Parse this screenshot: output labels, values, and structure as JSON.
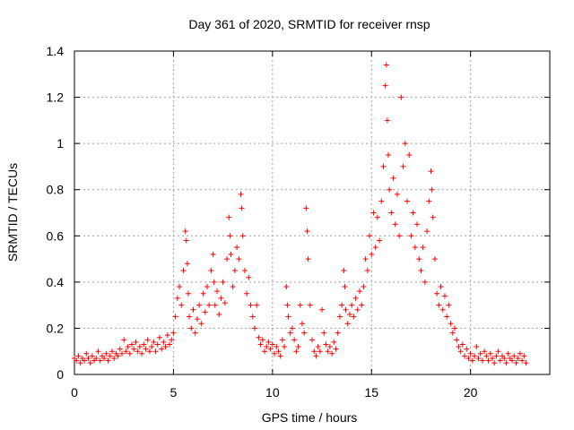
{
  "chart_data": {
    "type": "scatter",
    "title": "Day 361 of 2020, SRMTID for receiver rnsp",
    "xlabel": "GPS time / hours",
    "ylabel": "SRMTID / TECUs",
    "xlim": [
      0,
      24
    ],
    "ylim": [
      0,
      1.4
    ],
    "xticks": [
      0,
      5,
      10,
      15,
      20
    ],
    "xtick_labels": [
      "0",
      "5",
      "10",
      "15",
      "20"
    ],
    "yticks": [
      0,
      0.2,
      0.4,
      0.6,
      0.8,
      1.0,
      1.2,
      1.4
    ],
    "ytick_labels": [
      "0",
      "0.2",
      "0.4",
      "0.6",
      "0.8",
      "1",
      "1.2",
      "1.4"
    ],
    "grid": true,
    "marker": "plus",
    "marker_color": "#ff0000",
    "series": [
      {
        "name": "SRMTID",
        "points": [
          [
            0.0,
            0.07
          ],
          [
            0.1,
            0.06
          ],
          [
            0.2,
            0.08
          ],
          [
            0.3,
            0.05
          ],
          [
            0.4,
            0.07
          ],
          [
            0.5,
            0.06
          ],
          [
            0.6,
            0.09
          ],
          [
            0.7,
            0.07
          ],
          [
            0.8,
            0.05
          ],
          [
            0.9,
            0.08
          ],
          [
            1.0,
            0.06
          ],
          [
            1.1,
            0.07
          ],
          [
            1.2,
            0.1
          ],
          [
            1.3,
            0.06
          ],
          [
            1.4,
            0.08
          ],
          [
            1.5,
            0.07
          ],
          [
            1.6,
            0.09
          ],
          [
            1.7,
            0.06
          ],
          [
            1.8,
            0.08
          ],
          [
            1.9,
            0.1
          ],
          [
            2.0,
            0.07
          ],
          [
            2.1,
            0.09
          ],
          [
            2.2,
            0.08
          ],
          [
            2.3,
            0.11
          ],
          [
            2.4,
            0.09
          ],
          [
            2.5,
            0.15
          ],
          [
            2.6,
            0.1
          ],
          [
            2.7,
            0.12
          ],
          [
            2.8,
            0.09
          ],
          [
            2.9,
            0.13
          ],
          [
            3.0,
            0.11
          ],
          [
            3.1,
            0.14
          ],
          [
            3.2,
            0.1
          ],
          [
            3.3,
            0.12
          ],
          [
            3.4,
            0.09
          ],
          [
            3.5,
            0.13
          ],
          [
            3.6,
            0.11
          ],
          [
            3.7,
            0.15
          ],
          [
            3.8,
            0.1
          ],
          [
            3.9,
            0.12
          ],
          [
            4.0,
            0.14
          ],
          [
            4.1,
            0.1
          ],
          [
            4.2,
            0.13
          ],
          [
            4.3,
            0.16
          ],
          [
            4.4,
            0.11
          ],
          [
            4.5,
            0.14
          ],
          [
            4.6,
            0.12
          ],
          [
            4.7,
            0.17
          ],
          [
            4.8,
            0.13
          ],
          [
            4.9,
            0.15
          ],
          [
            5.0,
            0.18
          ],
          [
            5.1,
            0.25
          ],
          [
            5.2,
            0.33
          ],
          [
            5.3,
            0.38
          ],
          [
            5.4,
            0.3
          ],
          [
            5.5,
            0.45
          ],
          [
            5.6,
            0.62
          ],
          [
            5.65,
            0.58
          ],
          [
            5.7,
            0.48
          ],
          [
            5.75,
            0.35
          ],
          [
            5.8,
            0.25
          ],
          [
            5.9,
            0.2
          ],
          [
            6.0,
            0.28
          ],
          [
            6.1,
            0.18
          ],
          [
            6.2,
            0.24
          ],
          [
            6.3,
            0.3
          ],
          [
            6.4,
            0.22
          ],
          [
            6.5,
            0.35
          ],
          [
            6.6,
            0.27
          ],
          [
            6.7,
            0.38
          ],
          [
            6.8,
            0.3
          ],
          [
            6.9,
            0.45
          ],
          [
            7.0,
            0.52
          ],
          [
            7.05,
            0.4
          ],
          [
            7.1,
            0.3
          ],
          [
            7.2,
            0.36
          ],
          [
            7.3,
            0.26
          ],
          [
            7.4,
            0.33
          ],
          [
            7.5,
            0.4
          ],
          [
            7.6,
            0.31
          ],
          [
            7.7,
            0.5
          ],
          [
            7.8,
            0.68
          ],
          [
            7.85,
            0.6
          ],
          [
            7.9,
            0.52
          ],
          [
            8.0,
            0.38
          ],
          [
            8.1,
            0.45
          ],
          [
            8.2,
            0.55
          ],
          [
            8.3,
            0.5
          ],
          [
            8.4,
            0.78
          ],
          [
            8.45,
            0.72
          ],
          [
            8.5,
            0.6
          ],
          [
            8.6,
            0.45
          ],
          [
            8.7,
            0.35
          ],
          [
            8.8,
            0.42
          ],
          [
            8.9,
            0.3
          ],
          [
            9.0,
            0.25
          ],
          [
            9.1,
            0.2
          ],
          [
            9.2,
            0.3
          ],
          [
            9.3,
            0.16
          ],
          [
            9.4,
            0.13
          ],
          [
            9.5,
            0.15
          ],
          [
            9.6,
            0.1
          ],
          [
            9.7,
            0.12
          ],
          [
            9.8,
            0.14
          ],
          [
            9.9,
            0.11
          ],
          [
            10.0,
            0.13
          ],
          [
            10.1,
            0.09
          ],
          [
            10.2,
            0.12
          ],
          [
            10.3,
            0.1
          ],
          [
            10.4,
            0.08
          ],
          [
            10.5,
            0.15
          ],
          [
            10.6,
            0.12
          ],
          [
            10.7,
            0.38
          ],
          [
            10.75,
            0.3
          ],
          [
            10.8,
            0.25
          ],
          [
            10.9,
            0.18
          ],
          [
            11.0,
            0.2
          ],
          [
            11.1,
            0.15
          ],
          [
            11.2,
            0.1
          ],
          [
            11.3,
            0.12
          ],
          [
            11.4,
            0.3
          ],
          [
            11.5,
            0.22
          ],
          [
            11.6,
            0.18
          ],
          [
            11.7,
            0.72
          ],
          [
            11.75,
            0.62
          ],
          [
            11.8,
            0.5
          ],
          [
            11.9,
            0.3
          ],
          [
            12.0,
            0.15
          ],
          [
            12.1,
            0.1
          ],
          [
            12.2,
            0.08
          ],
          [
            12.3,
            0.12
          ],
          [
            12.4,
            0.1
          ],
          [
            12.5,
            0.28
          ],
          [
            12.6,
            0.18
          ],
          [
            12.7,
            0.13
          ],
          [
            12.8,
            0.1
          ],
          [
            12.9,
            0.12
          ],
          [
            13.0,
            0.09
          ],
          [
            13.1,
            0.14
          ],
          [
            13.2,
            0.11
          ],
          [
            13.3,
            0.18
          ],
          [
            13.4,
            0.25
          ],
          [
            13.5,
            0.3
          ],
          [
            13.6,
            0.45
          ],
          [
            13.65,
            0.38
          ],
          [
            13.7,
            0.28
          ],
          [
            13.8,
            0.22
          ],
          [
            13.9,
            0.26
          ],
          [
            14.0,
            0.3
          ],
          [
            14.1,
            0.25
          ],
          [
            14.2,
            0.33
          ],
          [
            14.3,
            0.28
          ],
          [
            14.4,
            0.36
          ],
          [
            14.5,
            0.3
          ],
          [
            14.6,
            0.38
          ],
          [
            14.7,
            0.5
          ],
          [
            14.8,
            0.45
          ],
          [
            14.9,
            0.6
          ],
          [
            15.0,
            0.52
          ],
          [
            15.1,
            0.7
          ],
          [
            15.2,
            0.55
          ],
          [
            15.3,
            0.68
          ],
          [
            15.4,
            0.58
          ],
          [
            15.5,
            0.75
          ],
          [
            15.6,
            0.9
          ],
          [
            15.7,
            1.25
          ],
          [
            15.75,
            1.34
          ],
          [
            15.8,
            1.1
          ],
          [
            15.85,
            0.95
          ],
          [
            15.9,
            0.8
          ],
          [
            16.0,
            0.7
          ],
          [
            16.1,
            0.85
          ],
          [
            16.2,
            0.65
          ],
          [
            16.3,
            0.78
          ],
          [
            16.4,
            0.6
          ],
          [
            16.5,
            1.2
          ],
          [
            16.6,
            0.9
          ],
          [
            16.7,
            1.0
          ],
          [
            16.8,
            0.75
          ],
          [
            16.9,
            0.95
          ],
          [
            17.0,
            0.6
          ],
          [
            17.1,
            0.7
          ],
          [
            17.2,
            0.55
          ],
          [
            17.3,
            0.65
          ],
          [
            17.4,
            0.5
          ],
          [
            17.5,
            0.45
          ],
          [
            17.6,
            0.55
          ],
          [
            17.7,
            0.4
          ],
          [
            17.8,
            0.62
          ],
          [
            17.9,
            0.75
          ],
          [
            18.0,
            0.88
          ],
          [
            18.05,
            0.8
          ],
          [
            18.1,
            0.68
          ],
          [
            18.2,
            0.5
          ],
          [
            18.3,
            0.35
          ],
          [
            18.4,
            0.3
          ],
          [
            18.5,
            0.38
          ],
          [
            18.6,
            0.28
          ],
          [
            18.7,
            0.34
          ],
          [
            18.8,
            0.25
          ],
          [
            18.9,
            0.3
          ],
          [
            19.0,
            0.22
          ],
          [
            19.1,
            0.18
          ],
          [
            19.2,
            0.2
          ],
          [
            19.3,
            0.15
          ],
          [
            19.4,
            0.12
          ],
          [
            19.5,
            0.1
          ],
          [
            19.6,
            0.13
          ],
          [
            19.7,
            0.08
          ],
          [
            19.8,
            0.11
          ],
          [
            19.9,
            0.07
          ],
          [
            20.0,
            0.09
          ],
          [
            20.1,
            0.06
          ],
          [
            20.2,
            0.08
          ],
          [
            20.3,
            0.12
          ],
          [
            20.4,
            0.07
          ],
          [
            20.5,
            0.09
          ],
          [
            20.6,
            0.06
          ],
          [
            20.7,
            0.1
          ],
          [
            20.8,
            0.08
          ],
          [
            20.9,
            0.06
          ],
          [
            21.0,
            0.09
          ],
          [
            21.1,
            0.07
          ],
          [
            21.2,
            0.05
          ],
          [
            21.3,
            0.08
          ],
          [
            21.4,
            0.1
          ],
          [
            21.5,
            0.06
          ],
          [
            21.6,
            0.08
          ],
          [
            21.7,
            0.07
          ],
          [
            21.8,
            0.05
          ],
          [
            21.9,
            0.09
          ],
          [
            22.0,
            0.07
          ],
          [
            22.1,
            0.06
          ],
          [
            22.2,
            0.08
          ],
          [
            22.3,
            0.05
          ],
          [
            22.4,
            0.07
          ],
          [
            22.5,
            0.09
          ],
          [
            22.6,
            0.06
          ],
          [
            22.7,
            0.08
          ],
          [
            22.8,
            0.05
          ]
        ]
      }
    ]
  }
}
